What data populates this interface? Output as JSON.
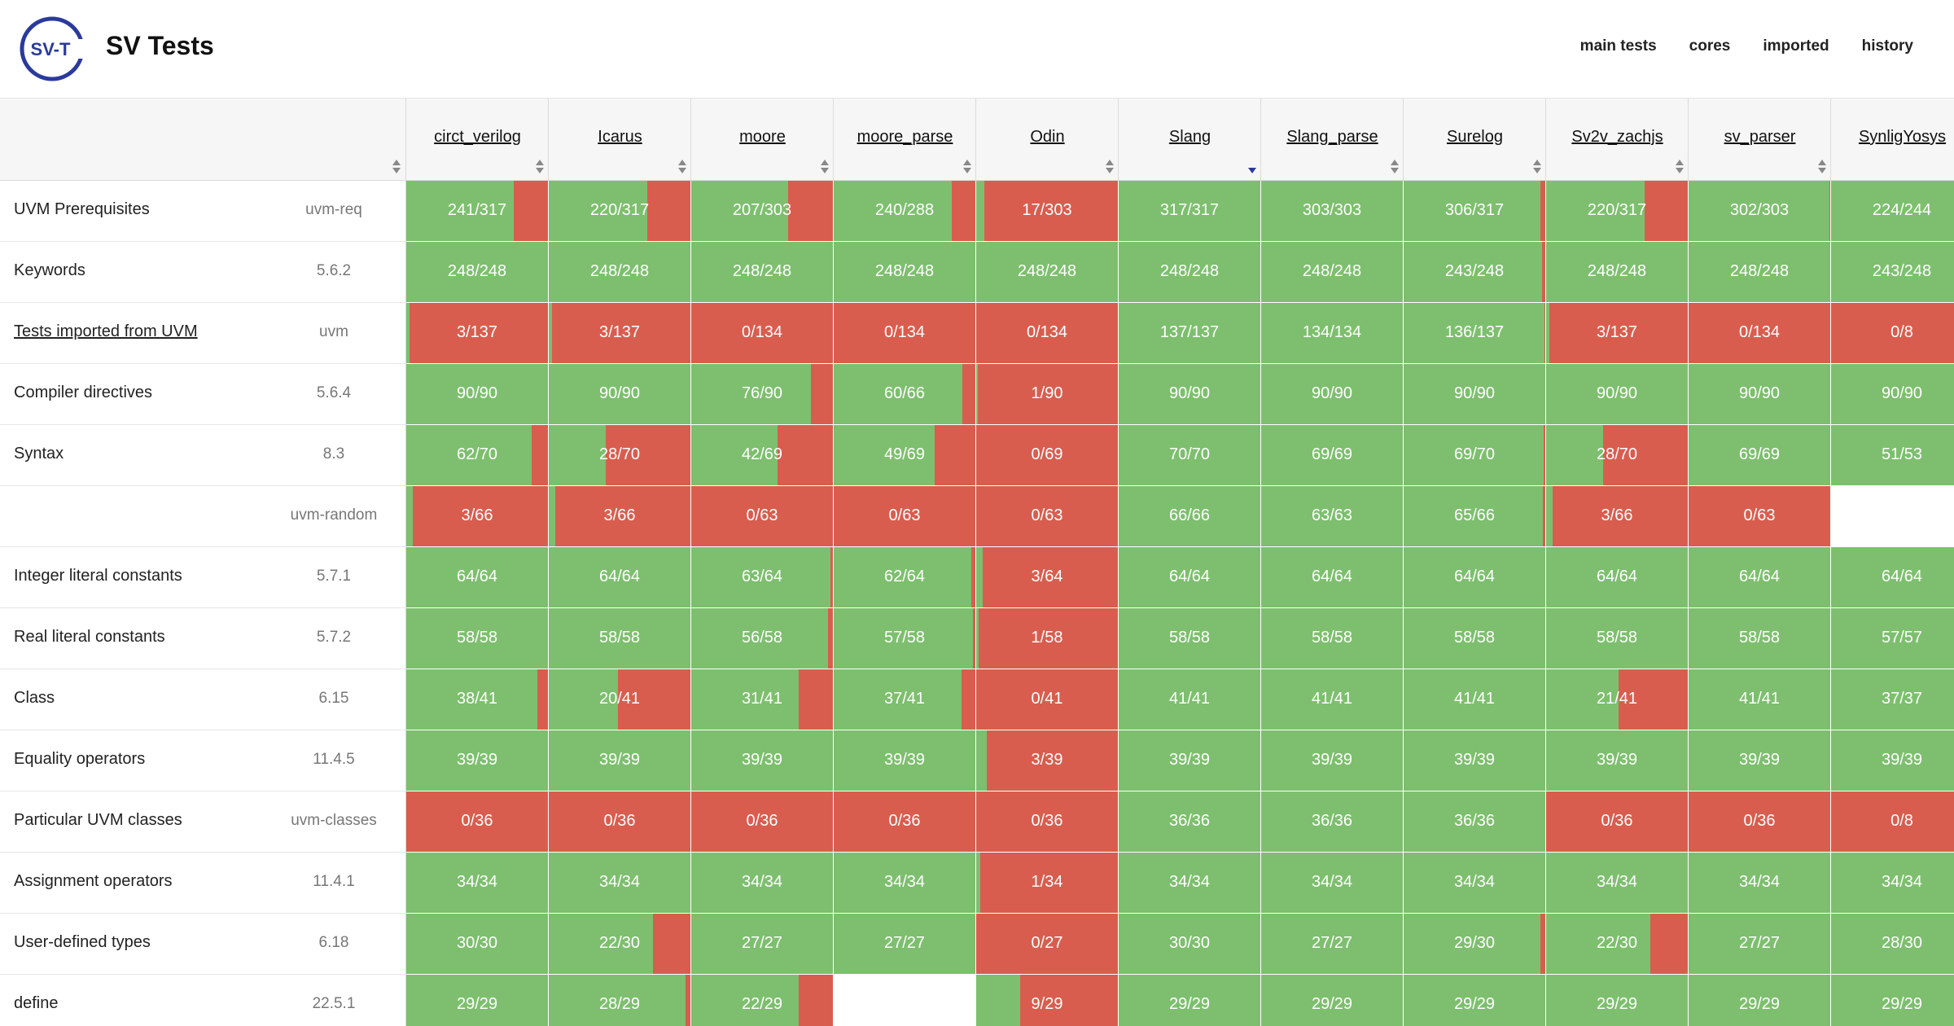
{
  "site": {
    "logo_text": "SV-T",
    "title": "SV Tests"
  },
  "nav": [
    {
      "id": "main-tests",
      "label": "main tests"
    },
    {
      "id": "cores",
      "label": "cores"
    },
    {
      "id": "imported",
      "label": "imported"
    },
    {
      "id": "history",
      "label": "history"
    }
  ],
  "colors": {
    "pass": "#7dbf6e",
    "fail": "#d95d4e",
    "logo_blue": "#2a3a9c"
  },
  "tools": [
    "circt_verilog",
    "Icarus",
    "moore",
    "moore_parse",
    "Odin",
    "Slang",
    "Slang_parse",
    "Surelog",
    "Sv2v_zachjs",
    "sv_parser",
    "SynligYosys"
  ],
  "sorted_column": "Slang",
  "rows": [
    {
      "feature": "UVM Prerequisites",
      "section": "uvm-req",
      "link": false,
      "scores": [
        "241/317",
        "220/317",
        "207/303",
        "240/288",
        "17/303",
        "317/317",
        "303/303",
        "306/317",
        "220/317",
        "302/303",
        "224/244"
      ]
    },
    {
      "feature": "Keywords",
      "section": "5.6.2",
      "link": false,
      "scores": [
        "248/248",
        "248/248",
        "248/248",
        "248/248",
        "248/248",
        "248/248",
        "248/248",
        "243/248",
        "248/248",
        "248/248",
        "243/248"
      ]
    },
    {
      "feature": "Tests imported from UVM",
      "section": "uvm",
      "link": true,
      "scores": [
        "3/137",
        "3/137",
        "0/134",
        "0/134",
        "0/134",
        "137/137",
        "134/134",
        "136/137",
        "3/137",
        "0/134",
        "0/8"
      ]
    },
    {
      "feature": "Compiler directives",
      "section": "5.6.4",
      "link": false,
      "scores": [
        "90/90",
        "90/90",
        "76/90",
        "60/66",
        "1/90",
        "90/90",
        "90/90",
        "90/90",
        "90/90",
        "90/90",
        "90/90"
      ]
    },
    {
      "feature": "Syntax",
      "section": "8.3",
      "link": false,
      "scores": [
        "62/70",
        "28/70",
        "42/69",
        "49/69",
        "0/69",
        "70/70",
        "69/69",
        "69/70",
        "28/70",
        "69/69",
        "51/53"
      ]
    },
    {
      "feature": "",
      "section": "uvm-random",
      "link": false,
      "scores": [
        "3/66",
        "3/66",
        "0/63",
        "0/63",
        "0/63",
        "66/66",
        "63/63",
        "65/66",
        "3/66",
        "0/63",
        ""
      ]
    },
    {
      "feature": "Integer literal constants",
      "section": "5.7.1",
      "link": false,
      "scores": [
        "64/64",
        "64/64",
        "63/64",
        "62/64",
        "3/64",
        "64/64",
        "64/64",
        "64/64",
        "64/64",
        "64/64",
        "64/64"
      ]
    },
    {
      "feature": "Real literal constants",
      "section": "5.7.2",
      "link": false,
      "scores": [
        "58/58",
        "58/58",
        "56/58",
        "57/58",
        "1/58",
        "58/58",
        "58/58",
        "58/58",
        "58/58",
        "58/58",
        "57/57"
      ]
    },
    {
      "feature": "Class",
      "section": "6.15",
      "link": false,
      "scores": [
        "38/41",
        "20/41",
        "31/41",
        "37/41",
        "0/41",
        "41/41",
        "41/41",
        "41/41",
        "21/41",
        "41/41",
        "37/37"
      ]
    },
    {
      "feature": "Equality operators",
      "section": "11.4.5",
      "link": false,
      "scores": [
        "39/39",
        "39/39",
        "39/39",
        "39/39",
        "3/39",
        "39/39",
        "39/39",
        "39/39",
        "39/39",
        "39/39",
        "39/39"
      ]
    },
    {
      "feature": "Particular UVM classes",
      "section": "uvm-classes",
      "link": false,
      "scores": [
        "0/36",
        "0/36",
        "0/36",
        "0/36",
        "0/36",
        "36/36",
        "36/36",
        "36/36",
        "0/36",
        "0/36",
        "0/8"
      ]
    },
    {
      "feature": "Assignment operators",
      "section": "11.4.1",
      "link": false,
      "scores": [
        "34/34",
        "34/34",
        "34/34",
        "34/34",
        "1/34",
        "34/34",
        "34/34",
        "34/34",
        "34/34",
        "34/34",
        "34/34"
      ]
    },
    {
      "feature": "User-defined types",
      "section": "6.18",
      "link": false,
      "scores": [
        "30/30",
        "22/30",
        "27/27",
        "27/27",
        "0/27",
        "30/30",
        "27/27",
        "29/30",
        "22/30",
        "27/27",
        "28/30"
      ]
    },
    {
      "feature": "define",
      "section": "22.5.1",
      "link": false,
      "scores": [
        "29/29",
        "28/29",
        "22/29",
        "",
        "9/29",
        "29/29",
        "29/29",
        "29/29",
        "29/29",
        "29/29",
        "29/29"
      ]
    }
  ]
}
